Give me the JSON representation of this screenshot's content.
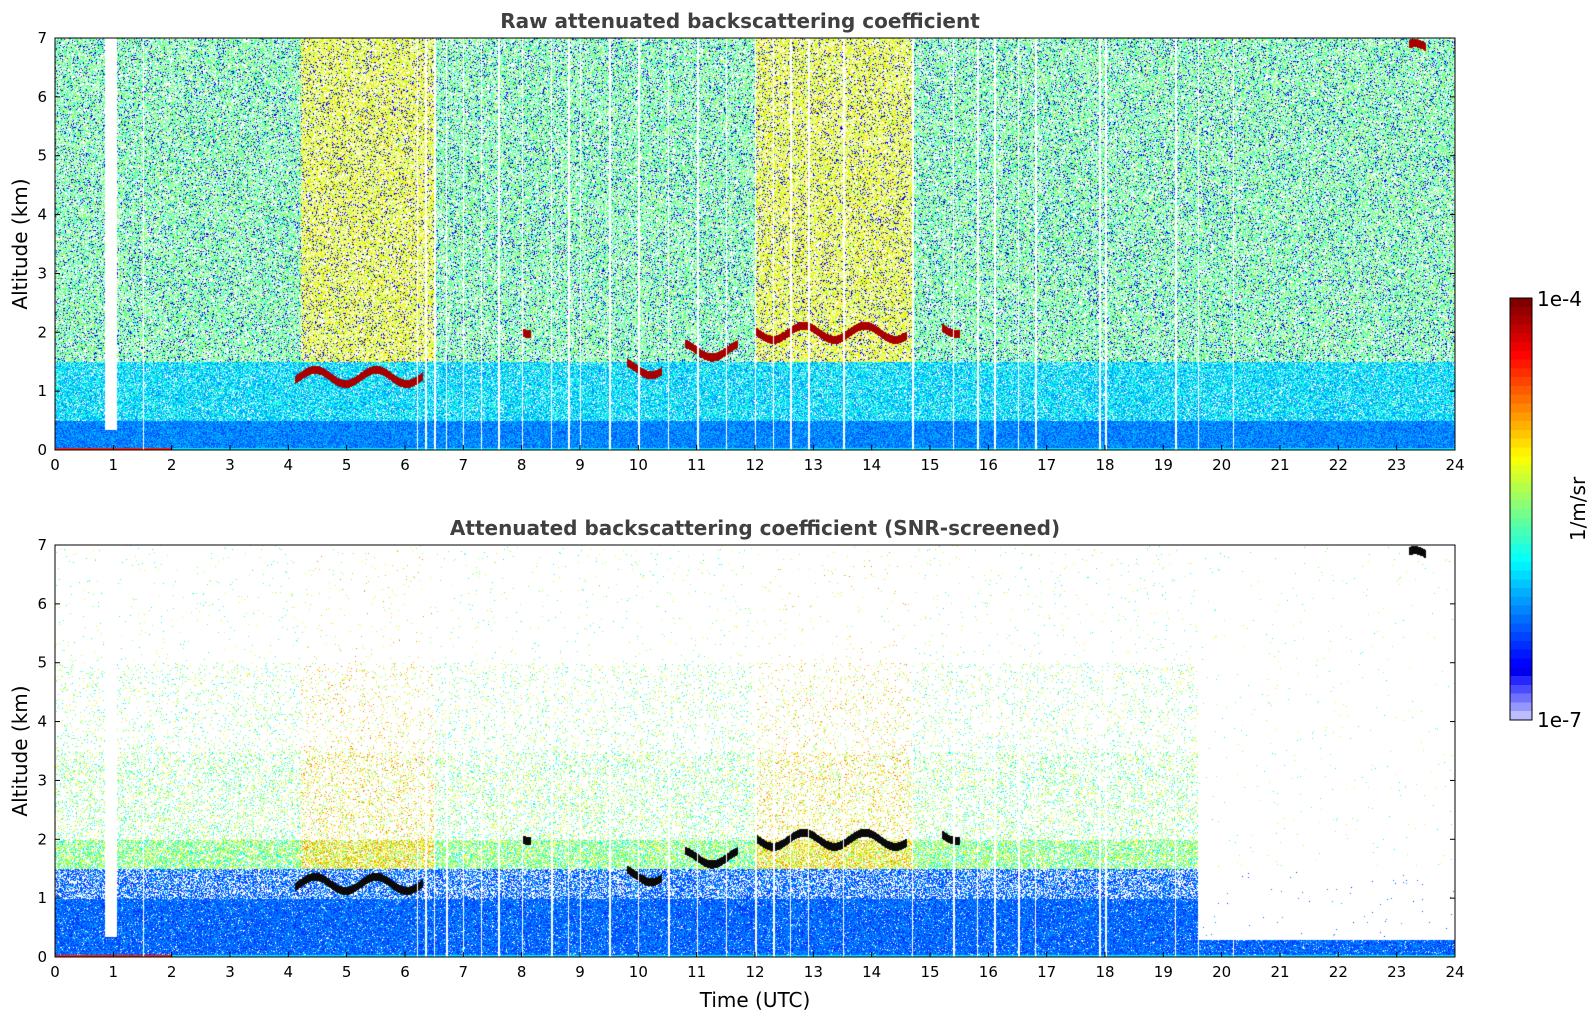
{
  "chart_data": [
    {
      "type": "heatmap",
      "title": "Raw attenuated backscattering coefficient",
      "xlabel": "",
      "ylabel": "Altitude (km)",
      "xlim": [
        0,
        24
      ],
      "ylim": [
        0,
        7
      ],
      "xticks": [
        "0",
        "1",
        "2",
        "3",
        "4",
        "5",
        "6",
        "7",
        "8",
        "9",
        "10",
        "11",
        "12",
        "13",
        "14",
        "15",
        "16",
        "17",
        "18",
        "19",
        "20",
        "21",
        "22",
        "23",
        "24"
      ],
      "yticks": [
        "0",
        "1",
        "2",
        "3",
        "4",
        "5",
        "6",
        "7"
      ],
      "screened": false,
      "aerosol_layer_top_km": 0.5,
      "cloud_layers": [
        {
          "t_start": 4.1,
          "t_end": 6.3,
          "alt_km": 1.25
        },
        {
          "t_start": 8.0,
          "t_end": 8.15,
          "alt_km": 2.1
        },
        {
          "t_start": 9.8,
          "t_end": 10.4,
          "alt_km": 1.4
        },
        {
          "t_start": 10.8,
          "t_end": 11.7,
          "alt_km": 1.7
        },
        {
          "t_start": 12.0,
          "t_end": 14.6,
          "alt_km": 2.0
        },
        {
          "t_start": 15.2,
          "t_end": 15.5,
          "alt_km": 2.1
        },
        {
          "t_start": 23.2,
          "t_end": 23.5,
          "alt_km": 6.8
        }
      ],
      "gap_times": [
        0.9,
        0.95,
        1.0,
        1.5,
        6.2,
        6.35,
        6.5,
        6.7,
        7.0,
        7.3,
        7.6,
        8.0,
        8.5,
        8.8,
        9.0,
        9.5,
        10.0,
        10.5,
        11.0,
        11.5,
        12.0,
        12.3,
        12.6,
        12.9,
        13.5,
        14.7,
        15.4,
        15.8,
        16.1,
        16.5,
        16.8,
        17.9,
        18.0,
        19.2,
        19.6,
        20.2
      ]
    },
    {
      "type": "heatmap",
      "title": "Attenuated backscattering coefficient (SNR-screened)",
      "xlabel": "Time (UTC)",
      "ylabel": "Altitude (km)",
      "xlim": [
        0,
        24
      ],
      "ylim": [
        0,
        7
      ],
      "xticks": [
        "0",
        "1",
        "2",
        "3",
        "4",
        "5",
        "6",
        "7",
        "8",
        "9",
        "10",
        "11",
        "12",
        "13",
        "14",
        "15",
        "16",
        "17",
        "18",
        "19",
        "20",
        "21",
        "22",
        "23",
        "24"
      ],
      "yticks": [
        "0",
        "1",
        "2",
        "3",
        "4",
        "5",
        "6",
        "7"
      ],
      "screened": true,
      "cloud_layers": [
        {
          "t_start": 4.1,
          "t_end": 6.3,
          "alt_km": 1.25
        },
        {
          "t_start": 8.0,
          "t_end": 8.15,
          "alt_km": 2.1
        },
        {
          "t_start": 9.8,
          "t_end": 10.4,
          "alt_km": 1.4
        },
        {
          "t_start": 10.8,
          "t_end": 11.7,
          "alt_km": 1.7
        },
        {
          "t_start": 12.0,
          "t_end": 14.6,
          "alt_km": 2.0
        },
        {
          "t_start": 15.2,
          "t_end": 15.5,
          "alt_km": 2.1
        },
        {
          "t_start": 23.2,
          "t_end": 23.5,
          "alt_km": 6.8
        }
      ]
    }
  ],
  "colorbar": {
    "label": "1/m/sr",
    "max_label": "1e-4",
    "min_label": "1e-7",
    "colormap": "jet"
  }
}
